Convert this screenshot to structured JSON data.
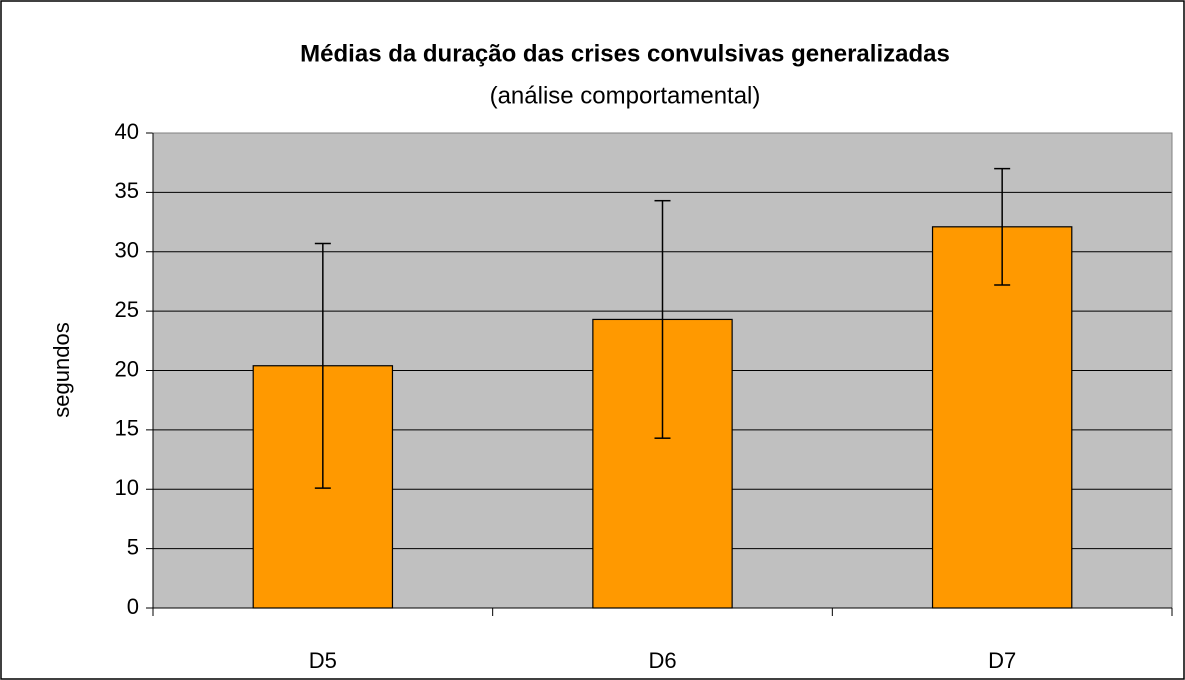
{
  "chart_data": {
    "type": "bar",
    "title": "Médias da duração das crises convulsivas generalizadas",
    "subtitle": "(análise comportamental)",
    "y_label": "segundos",
    "categories": [
      "D5",
      "D6",
      "D7"
    ],
    "values": [
      20.4,
      24.3,
      32.1
    ],
    "errors": [
      10.3,
      10.0,
      4.9
    ],
    "color": "#ff9900",
    "ylim": [
      0,
      40
    ],
    "yticks": [
      0,
      5,
      10,
      15,
      20,
      25,
      30,
      35,
      40
    ],
    "grid": true
  }
}
